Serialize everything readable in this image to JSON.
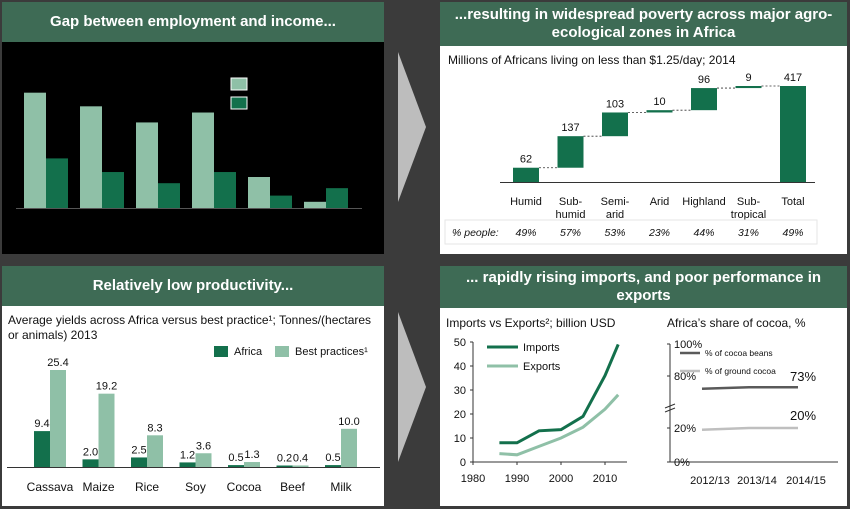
{
  "panels": {
    "top_left": {
      "title": "Gap between employment and income..."
    },
    "top_right": {
      "title": "...resulting in widespread poverty across major agro-ecological zones in Africa",
      "subtitle": "Millions of Africans living on less than $1.25/day; 2014"
    },
    "bottom_left": {
      "title": "Relatively low productivity...",
      "subtitle": "Average yields across Africa versus best practice¹; Tonnes/(hectares or animals) 2013"
    },
    "bottom_right": {
      "title": "... rapidly rising imports, and poor performance in exports",
      "subtitle_left": "Imports vs Exports²; billion USD",
      "subtitle_right": "Africa’s share of cocoa, %"
    }
  },
  "colors": {
    "dark": "#13704c",
    "light": "#8fc0a7",
    "header": "#3e6b55",
    "gray_dark": "#5a5a5a",
    "gray_light": "#bfbfbf"
  },
  "chart_data": [
    {
      "type": "bar",
      "title": "Gap between employment and income...",
      "categories": [
        "",
        "",
        "",
        "",
        "",
        ""
      ],
      "series": [
        {
          "values": [
            0.93,
            0.82,
            0.69,
            0.77,
            0.25,
            0.05
          ]
        },
        {
          "values": [
            0.4,
            0.29,
            0.2,
            0.29,
            0.1,
            0.16
          ]
        }
      ],
      "ylim": [
        0,
        1
      ]
    },
    {
      "type": "bar",
      "title": "...resulting in widespread poverty across major agro-ecological zones in Africa",
      "subtitle": "Millions of Africans living on less than $1.25/day; 2014",
      "variant": "waterfall",
      "categories": [
        "Humid",
        "Sub-humid",
        "Semi-arid",
        "Arid",
        "Highland",
        "Sub-tropical",
        "Total"
      ],
      "category_lines": [
        [
          "Humid"
        ],
        [
          "Sub-",
          "humid"
        ],
        [
          "Semi-",
          "arid"
        ],
        [
          "Arid"
        ],
        [
          "Highland"
        ],
        [
          "Sub-",
          "tropical"
        ],
        [
          "Total"
        ]
      ],
      "values": [
        62,
        137,
        103,
        10,
        96,
        9,
        417
      ],
      "row_label": "% people:",
      "percent_people": [
        "49%",
        "57%",
        "53%",
        "23%",
        "44%",
        "31%",
        "49%"
      ],
      "ylim": [
        0,
        430
      ]
    },
    {
      "type": "bar",
      "title": "Relatively low productivity...",
      "subtitle": "Average yields across Africa versus best practice¹; Tonnes/(hectares or animals) 2013",
      "categories": [
        "Cassava",
        "Maize",
        "Rice",
        "Soy",
        "Cocoa",
        "Beef",
        "Milk"
      ],
      "series": [
        {
          "name": "Africa",
          "values": [
            9.4,
            2.0,
            2.5,
            1.2,
            0.5,
            0.2,
            0.5
          ]
        },
        {
          "name": "Best practices¹",
          "values": [
            25.4,
            19.2,
            8.3,
            3.6,
            1.3,
            0.4,
            10.0
          ]
        }
      ],
      "value_labels": [
        [
          "9.4",
          "2.0",
          "2.5",
          "1.2",
          "0.5",
          "0.2",
          "0.5"
        ],
        [
          "25.4",
          "19.2",
          "8.3",
          "3.6",
          "1.3",
          "0.4",
          "10.0"
        ]
      ],
      "legend": "top-right",
      "ylim": [
        0,
        27
      ]
    },
    {
      "type": "line",
      "subtitle": "Imports vs Exports²; billion USD",
      "x": [
        1986,
        1990,
        1995,
        2000,
        2005,
        2010,
        2013
      ],
      "series": [
        {
          "name": "Imports",
          "values": [
            8,
            8,
            13,
            13.5,
            19,
            36,
            49
          ]
        },
        {
          "name": "Exports",
          "values": [
            3.5,
            3,
            6.5,
            10,
            14.5,
            22,
            28
          ]
        }
      ],
      "xticks": [
        "1980",
        "1990",
        "2000",
        "2010"
      ],
      "xtick_values": [
        1980,
        1990,
        2000,
        2010
      ],
      "yticks": [
        "0",
        "10",
        "20",
        "30",
        "40",
        "50"
      ],
      "ytick_values": [
        0,
        10,
        20,
        30,
        40,
        50
      ],
      "xlim": [
        1980,
        2015
      ],
      "ylim": [
        0,
        50
      ],
      "grid": false,
      "legend": "top-left"
    },
    {
      "type": "line",
      "subtitle": "Africa’s share of cocoa, %",
      "categories": [
        "2012/13",
        "2013/14",
        "2014/15"
      ],
      "series": [
        {
          "name": "% of cocoa beans",
          "values": [
            72,
            73,
            73
          ]
        },
        {
          "name": "% of ground cocoa",
          "values": [
            19,
            20,
            20
          ]
        }
      ],
      "end_labels": [
        "73%",
        "20%"
      ],
      "yticks": [
        "0%",
        "20%",
        "80%",
        "100%"
      ],
      "axis_break": true,
      "legend": "top-left"
    }
  ]
}
